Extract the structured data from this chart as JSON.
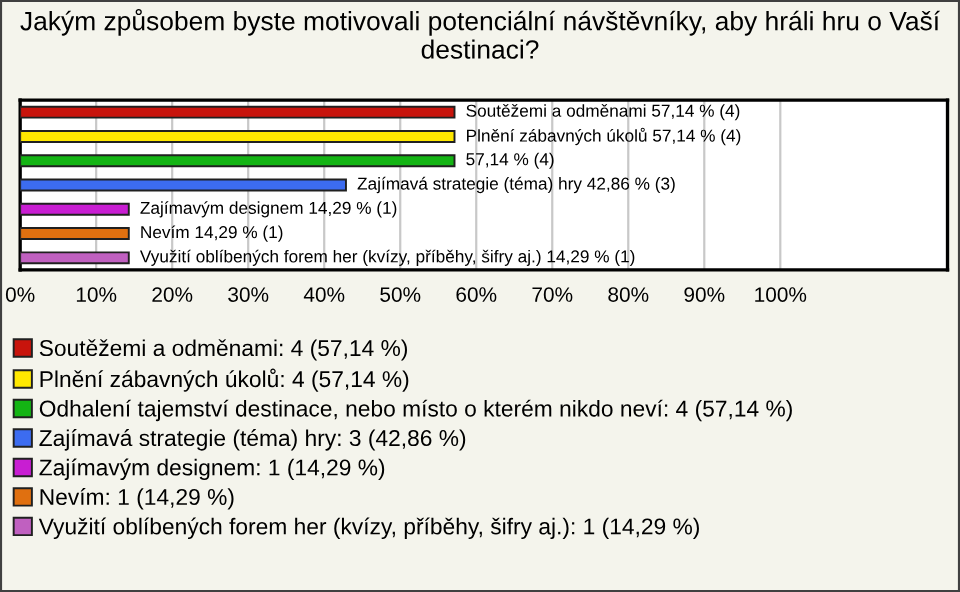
{
  "chart_data": {
    "type": "bar",
    "orientation": "horizontal",
    "stacked": true,
    "title": "Jakým způsobem byste motivovali potenciální návštěvníky, aby hráli hru o Vaší destinaci?",
    "categories": [
      null,
      null,
      null,
      null,
      null,
      null,
      null
    ],
    "series": [
      {
        "name": "Soutěžemi a odměnami: 4 (57,14 %)",
        "color": "#c8140c",
        "values": [
          57.14,
          null,
          null,
          null,
          null,
          null,
          null
        ],
        "value_labels": [
          "Soutěžemi a odměnami 57,14 % (4)",
          null,
          null,
          null,
          null,
          null,
          null
        ]
      },
      {
        "name": "Plnění zábavných úkolů: 4 (57,14 %)",
        "color": "#ffe800",
        "values": [
          null,
          57.14,
          null,
          null,
          null,
          null,
          null
        ],
        "value_labels": [
          null,
          "Plnění zábavných úkolů 57,14 % (4)",
          null,
          null,
          null,
          null,
          null
        ]
      },
      {
        "name": "Odhalení tajemství destinace, nebo místo o kterém nikdo neví: 4 (57,14 %)",
        "color": "#14b414",
        "values": [
          null,
          null,
          57.14,
          null,
          null,
          null,
          null
        ],
        "value_labels": [
          null,
          null,
          "57,14 % (4)",
          null,
          null,
          null,
          null
        ]
      },
      {
        "name": "Zajímavá strategie (téma) hry: 3 (42,86 %)",
        "color": "#3c6cf0",
        "values": [
          null,
          null,
          null,
          42.86,
          null,
          null,
          null
        ],
        "value_labels": [
          null,
          null,
          null,
          "Zajímavá strategie (téma) hry 42,86 % (3)",
          null,
          null,
          null
        ]
      },
      {
        "name": "Zajímavým designem: 1 (14,29 %)",
        "color": "#c81ed2",
        "values": [
          null,
          null,
          null,
          null,
          14.29,
          null,
          null
        ],
        "value_labels": [
          null,
          null,
          null,
          null,
          "Zajímavým designem 14,29 % (1)",
          null,
          null
        ]
      },
      {
        "name": "Nevím: 1 (14,29 %)",
        "color": "#e07010",
        "values": [
          null,
          null,
          null,
          null,
          null,
          14.29,
          null
        ],
        "value_labels": [
          null,
          null,
          null,
          null,
          null,
          "Nevím 14,29 % (1)",
          null
        ]
      },
      {
        "name": "Využití oblíbených forem her (kvízy, příběhy, šifry aj.): 1 (14,29 %)",
        "color": "#c060c0",
        "values": [
          null,
          null,
          null,
          null,
          null,
          null,
          14.29
        ],
        "value_labels": [
          null,
          null,
          null,
          null,
          null,
          null,
          "Využití oblíbených forem her (kvízy, příběhy, šifry aj.) 14,29 % (1)"
        ]
      }
    ],
    "xlim": [
      0,
      122
    ],
    "xticks": [
      {
        "value": 0,
        "label": "0%"
      },
      {
        "value": 10,
        "label": "10%"
      },
      {
        "value": 20,
        "label": "20%"
      },
      {
        "value": 30,
        "label": "30%"
      },
      {
        "value": 40,
        "label": "40%"
      },
      {
        "value": 50,
        "label": "50%"
      },
      {
        "value": 60,
        "label": "60%"
      },
      {
        "value": 70,
        "label": "70%"
      },
      {
        "value": 80,
        "label": "80%"
      },
      {
        "value": 90,
        "label": "90%"
      },
      {
        "value": 100,
        "label": "100%"
      }
    ],
    "grid": "x",
    "legend": "bottom"
  }
}
